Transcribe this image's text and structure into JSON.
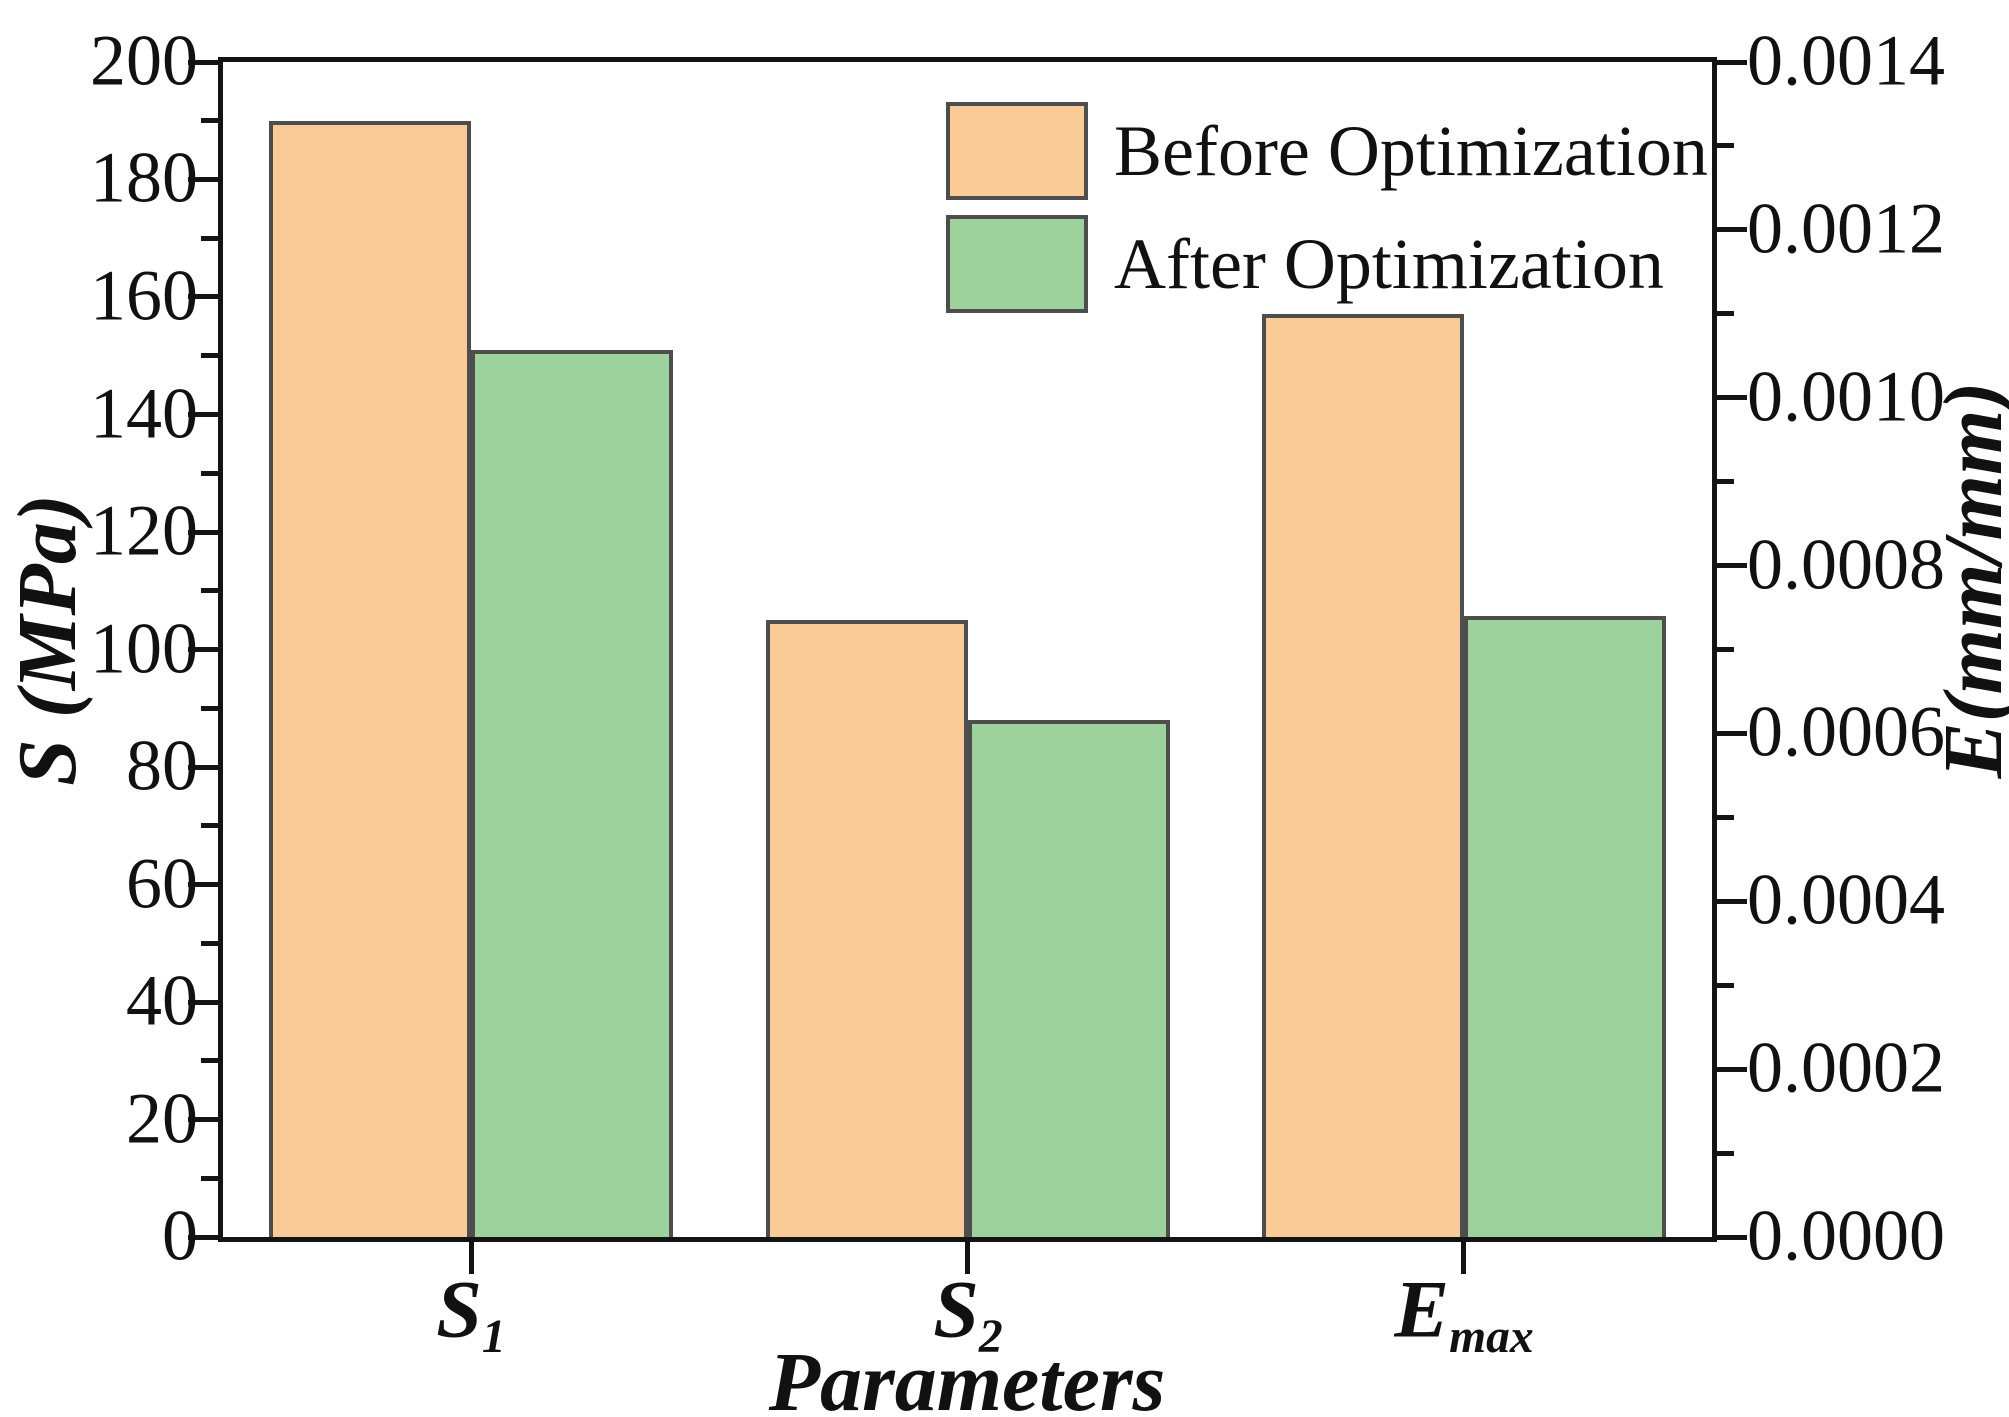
{
  "chart_data": {
    "type": "bar",
    "title": "",
    "categories": [
      "S_1",
      "S_2",
      "E_max"
    ],
    "categories_rich": [
      {
        "base": "S",
        "sub": "1"
      },
      {
        "base": "S",
        "sub": "2"
      },
      {
        "base": "E",
        "sub": "max"
      }
    ],
    "xlabel": "Parameters",
    "axes": {
      "left": {
        "label": "S (MPa)",
        "min": 0,
        "max": 200,
        "major_step": 20,
        "minor_step": 10,
        "decimals": 0
      },
      "right": {
        "label": "E(mm/mm)",
        "min": 0,
        "max": 0.0014,
        "major_step": 0.0002,
        "minor_step": 0.0001,
        "decimals": 4
      }
    },
    "series": [
      {
        "name": "Before Optimization",
        "color": "#FACA97",
        "edge_color": "#4d4d4d",
        "points": [
          {
            "category": "S_1",
            "axis": "left",
            "value": 190,
            "unit": "MPa"
          },
          {
            "category": "S_2",
            "axis": "left",
            "value": 105,
            "unit": "MPa"
          },
          {
            "category": "E_max",
            "axis": "right",
            "value": 0.0011,
            "unit": "mm/mm"
          }
        ]
      },
      {
        "name": "After Optimization",
        "color": "#9DD29D",
        "edge_color": "#4d4d4d",
        "points": [
          {
            "category": "S_1",
            "axis": "left",
            "value": 151,
            "unit": "MPa"
          },
          {
            "category": "S_2",
            "axis": "left",
            "value": 88,
            "unit": "MPa"
          },
          {
            "category": "E_max",
            "axis": "right",
            "value": 0.00074,
            "unit": "mm/mm"
          }
        ]
      }
    ],
    "grid": false,
    "legend_position": "top-center"
  },
  "colors": {
    "axis": "#141414",
    "text": "#111111",
    "background": "#ffffff"
  }
}
